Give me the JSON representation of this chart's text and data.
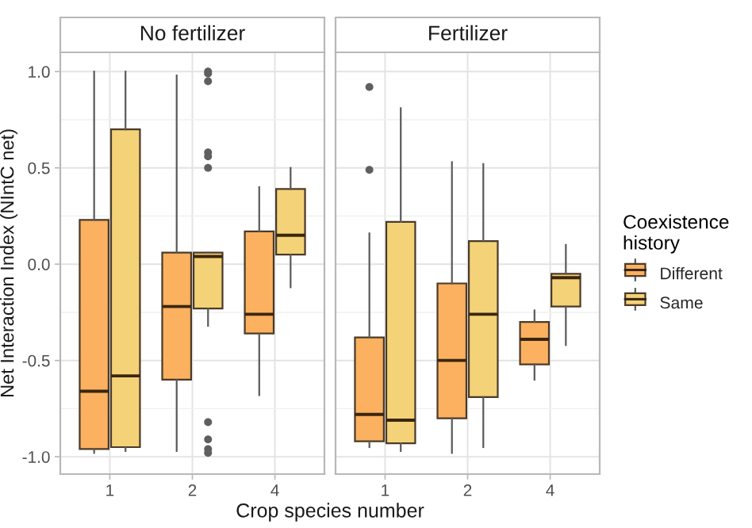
{
  "chart_data": [
    {
      "type": "box",
      "title": "No fertilizer",
      "xlabel": "Crop species number",
      "ylabel": "Net Interaction Index (NIntC net)",
      "categories": [
        "1",
        "2",
        "4"
      ],
      "ylim": [
        -1.09,
        1.1
      ],
      "yticks": [
        {
          "value": -1,
          "label": "-1.0"
        },
        {
          "value": -0.75,
          "label": null
        },
        {
          "value": -0.5,
          "label": "-0.5"
        },
        {
          "value": -0.25,
          "label": null
        },
        {
          "value": 0,
          "label": "0.0"
        },
        {
          "value": 0.25,
          "label": null
        },
        {
          "value": 0.5,
          "label": "0.5"
        },
        {
          "value": 0.75,
          "label": null
        },
        {
          "value": 1,
          "label": "1.0"
        }
      ],
      "grid": true,
      "legend": "right",
      "legend_title": "Coexistence history",
      "series": [
        {
          "name": "Different",
          "color": "#fbb15f",
          "boxes": [
            {
              "low": -0.98,
              "q1": -0.96,
              "median": -0.66,
              "q3": 0.23,
              "high": 1.0
            },
            {
              "low": -0.97,
              "q1": -0.6,
              "median": -0.22,
              "q3": 0.06,
              "high": 0.98
            },
            {
              "low": -0.68,
              "q1": -0.36,
              "median": -0.26,
              "q3": 0.17,
              "high": 0.4
            }
          ]
        },
        {
          "name": "Same",
          "color": "#f4d277",
          "boxes": [
            {
              "low": -0.97,
              "q1": -0.95,
              "median": -0.58,
              "q3": 0.7,
              "high": 1.0
            },
            {
              "low": -0.32,
              "q1": -0.23,
              "median": 0.04,
              "q3": 0.06,
              "high": 0.06,
              "outliers": [
                1.0,
                0.99,
                0.95,
                0.58,
                0.56,
                0.5,
                -0.82,
                -0.91,
                -0.96,
                -0.98
              ]
            },
            {
              "low": -0.12,
              "q1": 0.05,
              "median": 0.15,
              "q3": 0.39,
              "high": 0.5
            }
          ]
        }
      ]
    },
    {
      "type": "box",
      "title": "Fertilizer",
      "categories": [
        "1",
        "2",
        "4"
      ],
      "ylim": [
        -1.09,
        1.1
      ],
      "yticks": [
        -1,
        {
          "value": -0.75,
          "label": null
        },
        -0.5,
        {
          "value": -0.25,
          "label": null
        },
        0,
        {
          "value": 0.25,
          "label": null
        },
        0.5,
        {
          "value": 0.75,
          "label": null
        },
        1
      ],
      "grid": true,
      "tick_labels": "x",
      "series": [
        {
          "name": "Different",
          "color": "#fbb15f",
          "boxes": [
            {
              "low": -0.95,
              "q1": -0.92,
              "median": -0.78,
              "q3": -0.38,
              "high": 0.16,
              "outliers": [
                0.92,
                0.49
              ]
            },
            {
              "low": -0.98,
              "q1": -0.8,
              "median": -0.5,
              "q3": -0.1,
              "high": 0.53
            },
            {
              "low": -0.6,
              "q1": -0.52,
              "median": -0.39,
              "q3": -0.3,
              "high": -0.24
            }
          ]
        },
        {
          "name": "Same",
          "color": "#f4d277",
          "boxes": [
            {
              "low": -0.97,
              "q1": -0.93,
              "median": -0.81,
              "q3": 0.22,
              "high": 0.81
            },
            {
              "low": -0.95,
              "q1": -0.69,
              "median": -0.26,
              "q3": 0.12,
              "high": 0.52
            },
            {
              "low": -0.42,
              "q1": -0.22,
              "median": -0.07,
              "q3": -0.05,
              "high": 0.1
            }
          ]
        }
      ]
    }
  ]
}
